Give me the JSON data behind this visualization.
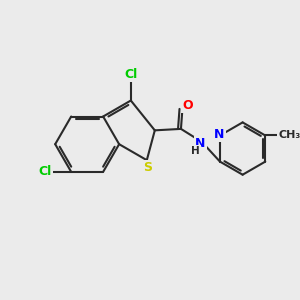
{
  "bg_color": "#ebebeb",
  "bond_color": "#2a2a2a",
  "bond_width": 1.5,
  "atom_colors": {
    "Cl": "#00cc00",
    "S": "#cccc00",
    "O": "#ff0000",
    "N": "#0000ff",
    "C": "#2a2a2a"
  }
}
